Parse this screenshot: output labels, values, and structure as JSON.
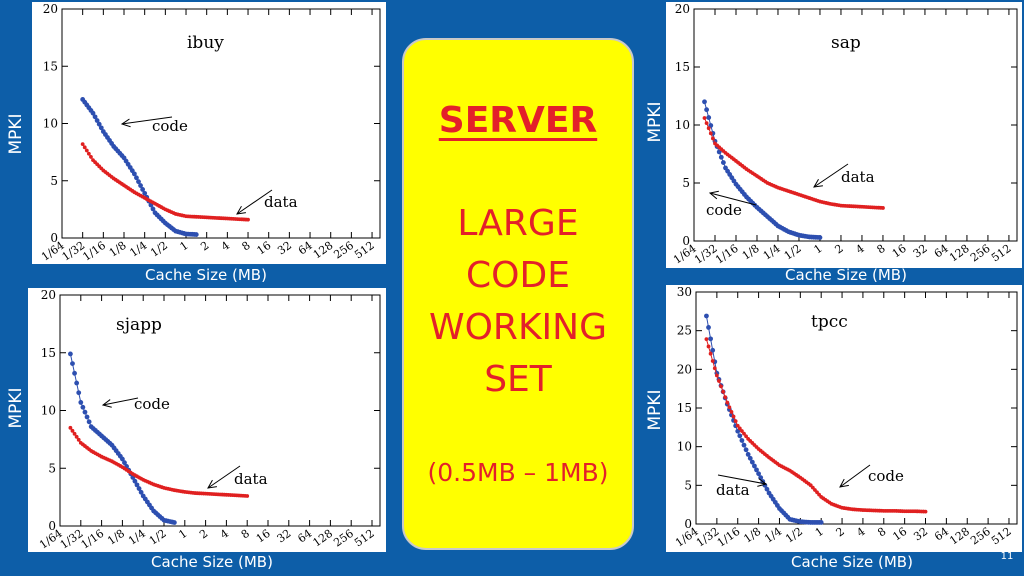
{
  "side_label": "MPKI",
  "x_caption": "Cache Size (MB)",
  "callout": {
    "title": "SERVER",
    "lines": [
      "LARGE",
      "CODE",
      "WORKING",
      "SET"
    ],
    "range": "(0.5MB – 1MB)"
  },
  "page_number": "11",
  "colors": {
    "background": "#0d5ea8",
    "code_series": "#2d4fb0",
    "data_series": "#e02020",
    "callout_fill": "#ffff00",
    "callout_text": "#e3202a"
  },
  "chart_data": [
    {
      "type": "line",
      "title": "ibuy",
      "xlabel": "Cache Size (MB)",
      "ylabel": "MPKI",
      "xscale": "log2",
      "x_ticks": [
        "1/64",
        "1/32",
        "1/16",
        "1/8",
        "1/4",
        "1/2",
        "1",
        "2",
        "4",
        "8",
        "16",
        "32",
        "64",
        "128",
        "256",
        "512"
      ],
      "ylim": [
        0,
        20
      ],
      "y_ticks": [
        0,
        5,
        10,
        15,
        20
      ],
      "series": [
        {
          "name": "code",
          "x": [
            0.03125,
            0.0442,
            0.0625,
            0.0884,
            0.125,
            0.177,
            0.25,
            0.354,
            0.5,
            0.707,
            1,
            1.41
          ],
          "values": [
            12.1,
            10.9,
            9.3,
            8.0,
            7.0,
            5.6,
            3.9,
            2.2,
            1.3,
            0.6,
            0.35,
            0.3
          ]
        },
        {
          "name": "data",
          "x": [
            0.03125,
            0.0442,
            0.0625,
            0.0884,
            0.125,
            0.177,
            0.25,
            0.354,
            0.5,
            0.707,
            1,
            1.41,
            2,
            2.83,
            4,
            5.66,
            8
          ],
          "values": [
            8.2,
            6.8,
            5.9,
            5.2,
            4.6,
            4.0,
            3.5,
            3.0,
            2.5,
            2.1,
            1.9,
            1.85,
            1.8,
            1.75,
            1.7,
            1.65,
            1.6
          ]
        }
      ],
      "annotations": [
        {
          "text": "code",
          "target_x": 0.044,
          "target_y": 9.8
        },
        {
          "text": "data",
          "target_x": 4,
          "target_y": 2.0
        }
      ]
    },
    {
      "type": "line",
      "title": "sap",
      "xlabel": "Cache Size (MB)",
      "ylabel": "MPKI",
      "xscale": "log2",
      "x_ticks": [
        "1/64",
        "1/32",
        "1/16",
        "1/8",
        "1/4",
        "1/2",
        "1",
        "2",
        "4",
        "8",
        "16",
        "32",
        "64",
        "128",
        "256",
        "512"
      ],
      "ylim": [
        0,
        20
      ],
      "y_ticks": [
        0,
        5,
        10,
        15,
        20
      ],
      "series": [
        {
          "name": "code",
          "x": [
            0.0221,
            0.03125,
            0.0442,
            0.0625,
            0.0884,
            0.125,
            0.177,
            0.25,
            0.354,
            0.5,
            0.707,
            1
          ],
          "values": [
            12.0,
            8.6,
            6.3,
            4.9,
            3.8,
            2.9,
            2.1,
            1.3,
            0.8,
            0.5,
            0.35,
            0.3
          ]
        },
        {
          "name": "data",
          "x": [
            0.0221,
            0.03125,
            0.0442,
            0.0625,
            0.0884,
            0.125,
            0.177,
            0.25,
            0.354,
            0.5,
            0.707,
            1,
            1.41,
            2,
            2.83,
            4,
            5.66,
            8
          ],
          "values": [
            10.6,
            8.4,
            7.6,
            6.9,
            6.2,
            5.6,
            5.0,
            4.6,
            4.3,
            4.0,
            3.7,
            3.4,
            3.2,
            3.05,
            3.0,
            2.95,
            2.9,
            2.85
          ]
        }
      ],
      "annotations": [
        {
          "text": "data",
          "target_x": 0.65,
          "target_y": 4.6
        },
        {
          "text": "code",
          "target_x": 0.125,
          "target_y": 3.3
        }
      ]
    },
    {
      "type": "line",
      "title": "sjapp",
      "xlabel": "Cache Size (MB)",
      "ylabel": "MPKI",
      "xscale": "log2",
      "x_ticks": [
        "1/64",
        "1/32",
        "1/16",
        "1/8",
        "1/4",
        "1/2",
        "1",
        "2",
        "4",
        "8",
        "16",
        "32",
        "64",
        "128",
        "256",
        "512"
      ],
      "ylim": [
        0,
        20
      ],
      "y_ticks": [
        0,
        5,
        10,
        15,
        20
      ],
      "series": [
        {
          "name": "code",
          "x": [
            0.0221,
            0.03125,
            0.0442,
            0.0625,
            0.0884,
            0.125,
            0.177,
            0.25,
            0.354,
            0.5,
            0.707
          ],
          "values": [
            14.9,
            10.7,
            8.6,
            7.8,
            7.0,
            5.8,
            4.2,
            2.6,
            1.3,
            0.5,
            0.3
          ]
        },
        {
          "name": "data",
          "x": [
            0.0221,
            0.03125,
            0.0442,
            0.0625,
            0.0884,
            0.125,
            0.177,
            0.25,
            0.354,
            0.5,
            0.707,
            1,
            1.41,
            2,
            2.83,
            4,
            5.66,
            8
          ],
          "values": [
            8.5,
            7.2,
            6.5,
            6.0,
            5.6,
            5.1,
            4.5,
            4.0,
            3.6,
            3.3,
            3.1,
            2.95,
            2.85,
            2.8,
            2.75,
            2.7,
            2.65,
            2.6
          ]
        }
      ],
      "annotations": [
        {
          "text": "code",
          "target_x": 0.0442,
          "target_y": 10.9
        },
        {
          "text": "data",
          "target_x": 2,
          "target_y": 3.0
        }
      ]
    },
    {
      "type": "line",
      "title": "tpcc",
      "xlabel": "Cache Size (MB)",
      "ylabel": "MPKI",
      "xscale": "log2",
      "x_ticks": [
        "1/64",
        "1/32",
        "1/16",
        "1/8",
        "1/4",
        "1/2",
        "1",
        "2",
        "4",
        "8",
        "16",
        "32",
        "64",
        "128",
        "256",
        "512"
      ],
      "ylim": [
        0,
        30
      ],
      "y_ticks": [
        0,
        5,
        10,
        15,
        20,
        25,
        30
      ],
      "series": [
        {
          "name": "code",
          "x": [
            0.0221,
            0.03125,
            0.0442,
            0.0625,
            0.0884,
            0.125,
            0.177,
            0.25,
            0.354,
            0.5,
            0.707,
            1
          ],
          "values": [
            26.9,
            19.5,
            15.5,
            12.0,
            9.0,
            6.5,
            4.0,
            2.0,
            0.6,
            0.3,
            0.2,
            0.2
          ]
        },
        {
          "name": "data",
          "x": [
            0.0221,
            0.03125,
            0.0442,
            0.0625,
            0.0884,
            0.125,
            0.177,
            0.25,
            0.354,
            0.5,
            0.707,
            1,
            1.41,
            2,
            2.83,
            4,
            5.66,
            8,
            11.3,
            16,
            22.6,
            32
          ],
          "values": [
            23.9,
            19.2,
            15.7,
            12.7,
            11.0,
            9.7,
            8.6,
            7.6,
            6.9,
            6.0,
            5.0,
            3.5,
            2.6,
            2.1,
            1.9,
            1.8,
            1.75,
            1.7,
            1.7,
            1.65,
            1.65,
            1.6
          ]
        }
      ],
      "annotations": [
        {
          "text": "data",
          "target_x": 1,
          "target_y": 4.8
        },
        {
          "text": "code",
          "target_x": 0.25,
          "target_y": 5.5
        }
      ]
    }
  ]
}
